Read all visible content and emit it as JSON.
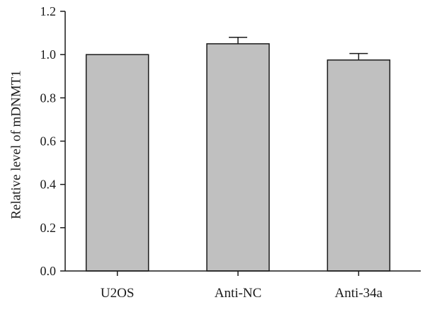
{
  "chart_data": {
    "type": "bar",
    "title": "",
    "xlabel": "",
    "ylabel": "Relative level of mDNMT1",
    "categories": [
      "U2OS",
      "Anti-NC",
      "Anti-34a"
    ],
    "values": [
      1.0,
      1.05,
      0.975
    ],
    "errors": [
      0.0,
      0.03,
      0.03
    ],
    "ylim": [
      0,
      1.2
    ],
    "yticks": [
      0.0,
      0.2,
      0.4,
      0.6,
      0.8,
      1.0,
      1.2
    ],
    "ytick_labels": [
      "0.0",
      "0.2",
      "0.4",
      "0.6",
      "0.8",
      "1.0",
      "1.2"
    ],
    "grid": false,
    "legend": "none",
    "colors": {
      "bar_fill": "#c0c0c0",
      "bar_stroke": "#1a1a1a",
      "axis": "#1a1a1a"
    }
  }
}
